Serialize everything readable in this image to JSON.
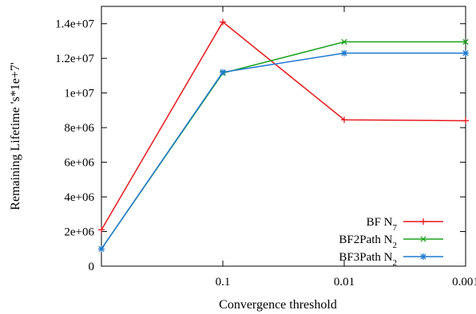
{
  "chart_data": {
    "type": "line",
    "categories": [
      "1",
      "0.1",
      "0.01",
      "0.001"
    ],
    "x_tick_labels": [
      "0.1",
      "0.01",
      "0.001"
    ],
    "xlabel": "Convergence threshold",
    "ylabel": "Remaining Lifetime 's*1e+7'",
    "ylim": [
      0,
      15000000
    ],
    "y_ticks": [
      0,
      2000000,
      4000000,
      6000000,
      8000000,
      10000000,
      12000000,
      14000000
    ],
    "y_tick_labels": [
      "0",
      "2e+06",
      "4e+06",
      "6e+06",
      "8e+06",
      "1e+07",
      "1.2e+07",
      "1.4e+07"
    ],
    "grid": false,
    "legend_position": "bottom-right",
    "series": [
      {
        "name": "BF N",
        "name_sub": "7",
        "color": "#e41a1c",
        "marker": "plus",
        "values": [
          2100000,
          14100000,
          8450000,
          8400000
        ]
      },
      {
        "name": "BF2Path N",
        "name_sub": "2",
        "color": "#1aa31a",
        "marker": "cross",
        "values": [
          1000000,
          11150000,
          12950000,
          12950000
        ]
      },
      {
        "name": "BF3Path N",
        "name_sub": "2",
        "color": "#1f78d1",
        "marker": "star",
        "values": [
          1000000,
          11200000,
          12300000,
          12300000
        ]
      }
    ]
  }
}
